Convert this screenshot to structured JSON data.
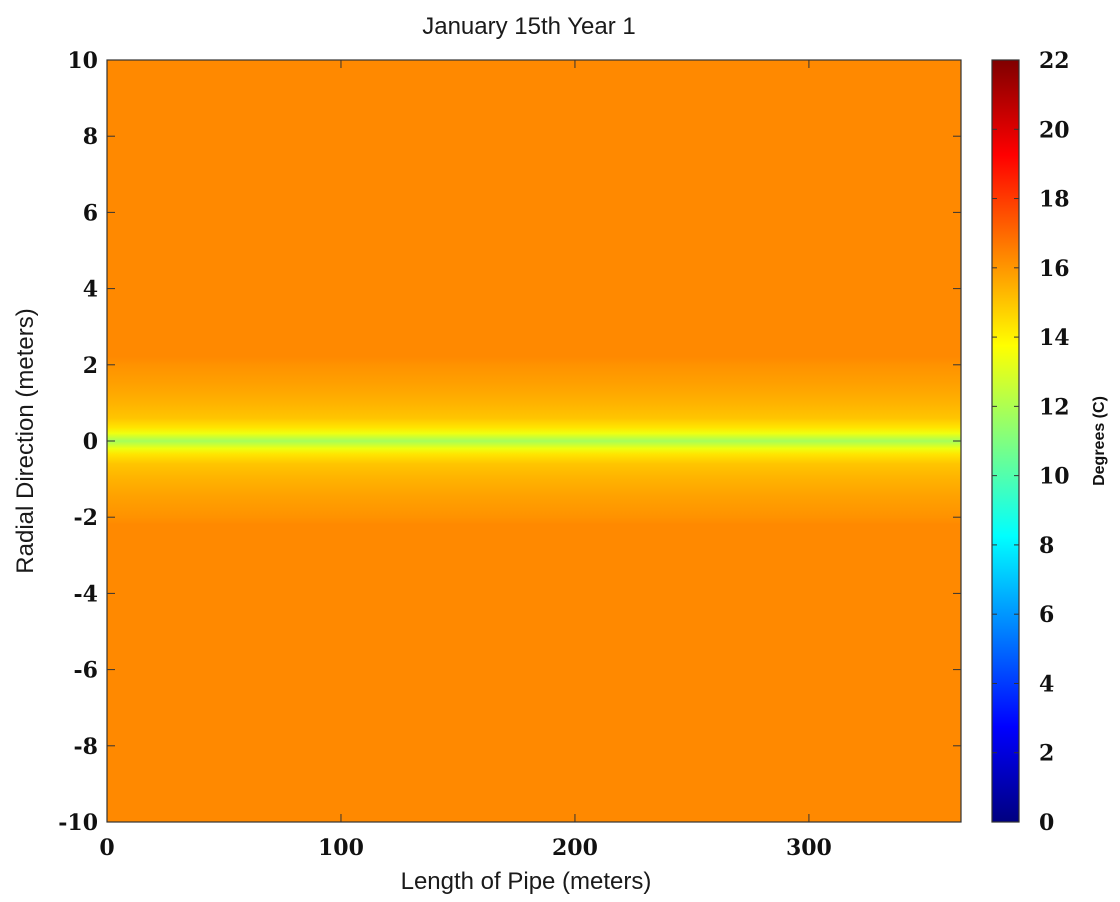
{
  "chart_data": {
    "type": "heatmap",
    "title": "January 15th Year 1",
    "xlabel": "Length of Pipe (meters)",
    "ylabel": "Radial Direction (meters)",
    "colorbar_label": "Degrees (C)",
    "xlim": [
      0,
      365
    ],
    "ylim": [
      -10,
      10
    ],
    "xticks": [
      0,
      100,
      200,
      300
    ],
    "yticks": [
      -10,
      -8,
      -6,
      -4,
      -2,
      0,
      2,
      4,
      6,
      8,
      10
    ],
    "colorbar_range": [
      0,
      22
    ],
    "colorbar_ticks": [
      0,
      2,
      4,
      6,
      8,
      10,
      12,
      14,
      16,
      18,
      20,
      22
    ],
    "colormap": "jet",
    "background_value": 16.3,
    "radial_profile": [
      {
        "r": 0.0,
        "value": 11.8
      },
      {
        "r": 0.1,
        "value": 12.6
      },
      {
        "r": 0.2,
        "value": 13.4
      },
      {
        "r": 0.35,
        "value": 14.3
      },
      {
        "r": 0.6,
        "value": 15.0
      },
      {
        "r": 1.0,
        "value": 15.4
      },
      {
        "r": 1.5,
        "value": 15.8
      },
      {
        "r": 2.0,
        "value": 16.1
      },
      {
        "r": 2.2,
        "value": 16.3
      },
      {
        "r": 10.0,
        "value": 16.3
      }
    ]
  }
}
